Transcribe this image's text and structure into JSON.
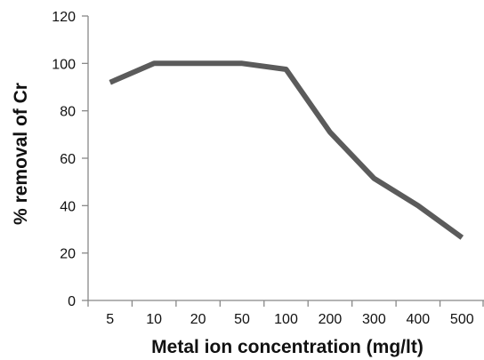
{
  "chart_data": {
    "type": "line",
    "categories": [
      "5",
      "10",
      "20",
      "50",
      "100",
      "200",
      "300",
      "400",
      "500"
    ],
    "series": [
      {
        "values": [
          92,
          100,
          100,
          100,
          97.5,
          71,
          51.5,
          40,
          26.5
        ]
      }
    ],
    "xlabel": "Metal ion concentration (mg/lt)",
    "ylabel": "% removal of Cr",
    "ylim": [
      0,
      120
    ],
    "yticks": [
      0,
      20,
      40,
      60,
      80,
      100,
      120
    ],
    "grid": false,
    "colors": {
      "line": "#5b5b5b",
      "axis": "#888888"
    }
  }
}
